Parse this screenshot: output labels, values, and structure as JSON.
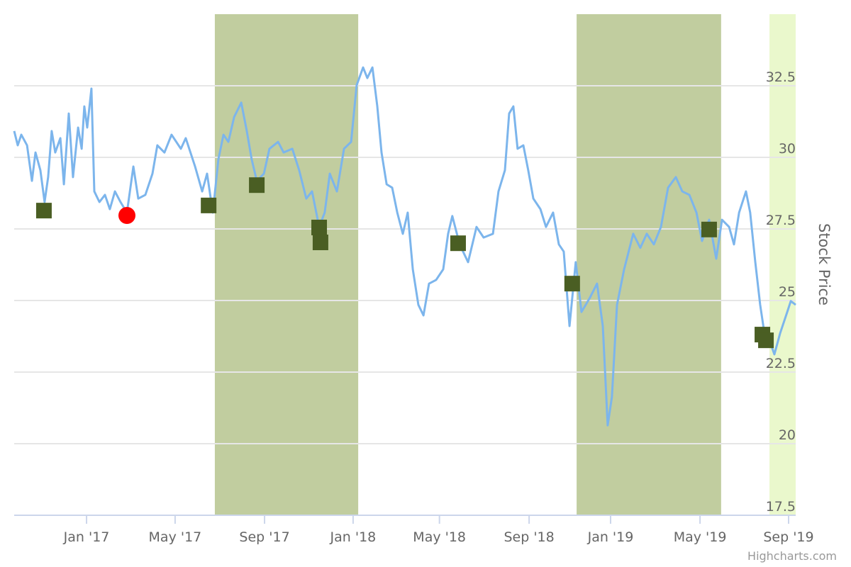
{
  "chart_data": {
    "type": "line",
    "y_axis_title": "Stock Price",
    "credit": "Highcharts.com",
    "xlim": [
      -3.26,
      31.95
    ],
    "ylim": [
      17.5,
      35
    ],
    "xticks": [
      {
        "value": 0,
        "label": "Jan '17"
      },
      {
        "value": 3.99,
        "label": "May '17"
      },
      {
        "value": 8.02,
        "label": "Sep '17"
      },
      {
        "value": 12.01,
        "label": "Jan '18"
      },
      {
        "value": 15.9,
        "label": "May '18"
      },
      {
        "value": 19.94,
        "label": "Sep '18"
      },
      {
        "value": 23.61,
        "label": "Jan '19"
      },
      {
        "value": 27.64,
        "label": "May '19"
      },
      {
        "value": 31.63,
        "label": "Sep '19"
      }
    ],
    "yticks": [
      17.5,
      20,
      22.5,
      25,
      27.5,
      30,
      32.5
    ],
    "grid": true,
    "plot_bands": [
      {
        "from": 5.78,
        "to": 12.24,
        "color": "#c1cd9f"
      },
      {
        "from": 22.08,
        "to": 28.59,
        "color": "#c1cd9f"
      },
      {
        "from": 30.77,
        "to": 31.95,
        "color": "#eaf8cc"
      }
    ],
    "series": [
      {
        "type": "line",
        "color": "#7cb5ec",
        "x": [
          -3.26,
          -3.1,
          -2.94,
          -2.68,
          -2.46,
          -2.3,
          -2.08,
          -1.89,
          -1.73,
          -1.57,
          -1.41,
          -1.18,
          -1.02,
          -0.8,
          -0.61,
          -0.38,
          -0.22,
          -0.1,
          0.03,
          0.22,
          0.35,
          0.58,
          0.83,
          1.05,
          1.28,
          1.53,
          1.82,
          2.11,
          2.33,
          2.65,
          2.97,
          3.19,
          3.51,
          3.83,
          4.25,
          4.47,
          4.89,
          5.21,
          5.43,
          5.69,
          5.94,
          6.17,
          6.39,
          6.65,
          6.97,
          7.22,
          7.44,
          7.67,
          7.99,
          8.24,
          8.63,
          8.88,
          9.27,
          9.58,
          9.9,
          10.16,
          10.48,
          10.73,
          10.96,
          11.28,
          11.6,
          11.92,
          12.17,
          12.46,
          12.65,
          12.88,
          13.1,
          13.29,
          13.52,
          13.77,
          14.0,
          14.25,
          14.47,
          14.7,
          14.95,
          15.18,
          15.43,
          15.75,
          16.07,
          16.29,
          16.48,
          16.81,
          17.19,
          17.57,
          17.89,
          18.31,
          18.56,
          18.85,
          19.04,
          19.23,
          19.42,
          19.68,
          19.9,
          20.13,
          20.45,
          20.7,
          21.02,
          21.28,
          21.5,
          21.76,
          22.04,
          22.3,
          22.68,
          23.0,
          23.26,
          23.48,
          23.67,
          23.9,
          24.22,
          24.63,
          24.95,
          25.24,
          25.56,
          25.88,
          26.2,
          26.55,
          26.84,
          27.16,
          27.48,
          27.73,
          28.05,
          28.37,
          28.63,
          28.95,
          29.17,
          29.4,
          29.71,
          29.9,
          30.13,
          30.35,
          30.54,
          30.77,
          30.99,
          31.25,
          31.57,
          31.73,
          31.95
        ],
        "values": [
          30.92,
          30.42,
          30.79,
          30.42,
          29.18,
          30.17,
          29.55,
          28.44,
          29.31,
          30.92,
          30.17,
          30.67,
          29.06,
          31.53,
          29.31,
          31.04,
          30.3,
          31.78,
          31.04,
          32.4,
          28.81,
          28.44,
          28.69,
          28.19,
          28.81,
          28.44,
          28.07,
          29.68,
          28.56,
          28.69,
          29.43,
          30.42,
          30.17,
          30.79,
          30.3,
          30.67,
          29.68,
          28.81,
          29.43,
          28.07,
          29.93,
          30.79,
          30.54,
          31.41,
          31.91,
          30.92,
          29.93,
          29.18,
          29.43,
          30.3,
          30.54,
          30.17,
          30.3,
          29.55,
          28.56,
          28.81,
          27.57,
          28.07,
          29.43,
          28.81,
          30.3,
          30.54,
          32.52,
          33.14,
          32.77,
          33.14,
          31.78,
          30.17,
          29.06,
          28.94,
          28.07,
          27.33,
          28.07,
          26.09,
          24.85,
          24.48,
          25.59,
          25.72,
          26.09,
          27.33,
          27.95,
          26.96,
          26.34,
          27.57,
          27.2,
          27.33,
          28.81,
          29.55,
          31.53,
          31.78,
          30.3,
          30.42,
          29.55,
          28.56,
          28.19,
          27.57,
          28.07,
          26.96,
          26.71,
          24.11,
          26.34,
          24.6,
          25.1,
          25.59,
          24.11,
          20.64,
          21.63,
          24.85,
          26.09,
          27.33,
          26.84,
          27.33,
          26.96,
          27.57,
          28.94,
          29.31,
          28.81,
          28.69,
          28.07,
          27.08,
          27.82,
          26.46,
          27.82,
          27.57,
          26.96,
          28.07,
          28.81,
          28.07,
          26.34,
          24.85,
          23.86,
          23.61,
          23.12,
          23.86,
          24.6,
          24.98,
          24.85
        ]
      },
      {
        "type": "marker",
        "marker": "square",
        "color": "#4a5e23",
        "x": [
          -1.92,
          5.5,
          7.67,
          10.48,
          10.54,
          16.74,
          21.88,
          28.05,
          30.45,
          30.61
        ],
        "values": [
          28.14,
          28.32,
          29.03,
          27.55,
          27.03,
          27.0,
          25.59,
          27.48,
          23.81,
          23.61
        ]
      },
      {
        "type": "marker",
        "marker": "circle",
        "color": "#ff0000",
        "x": [
          1.82
        ],
        "values": [
          27.97
        ]
      }
    ]
  }
}
